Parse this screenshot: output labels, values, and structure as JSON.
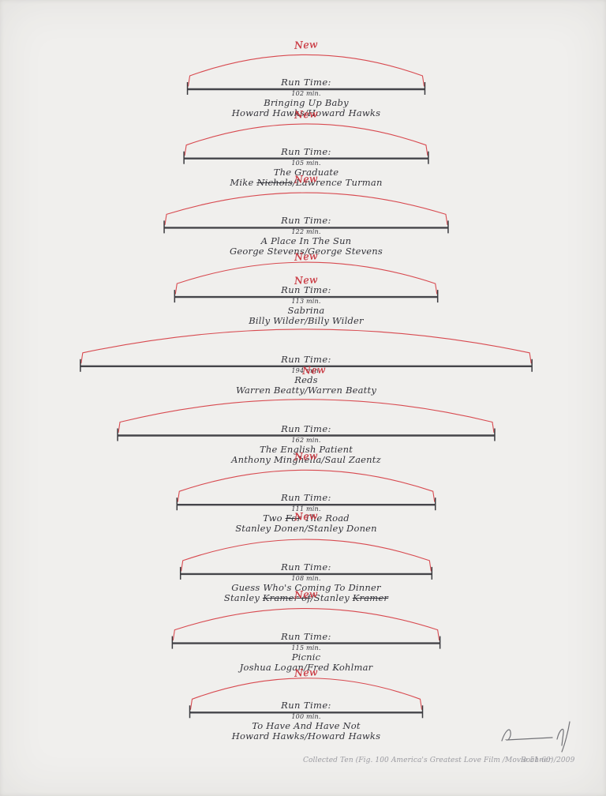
{
  "artwork": {
    "new_label": "New",
    "runtime_label": "Run Time:",
    "caption": "Collected Ten (Fig. 100 America's Greatest Love Film /Movie 51-60)",
    "signature_text": "Bochner /2009",
    "colors": {
      "paper": "#f0efed",
      "ink": "#33333a",
      "line": "#45454a",
      "red_arc": "#d84a50",
      "red_new": "#c9353e",
      "pencil": "#9b9ba1"
    },
    "sections": [
      {
        "runtime_min": 102,
        "minutes_text": "102 min.",
        "title": [
          {
            "text": "Bringing Up Baby"
          }
        ],
        "credits": [
          {
            "text": "Howard Hawks/Howard Hawks"
          }
        ],
        "new_positions": [
          "above-arc"
        ]
      },
      {
        "runtime_min": 105,
        "minutes_text": "105 min.",
        "title": [
          {
            "text": "The Graduate"
          }
        ],
        "credits": [
          {
            "text": "Mike "
          },
          {
            "text": "Nichols",
            "struck": true
          },
          {
            "text": "/Lawrence Turman"
          }
        ],
        "new_positions": [
          "above-arc",
          "on-credits"
        ]
      },
      {
        "runtime_min": 122,
        "minutes_text": "122 min.",
        "title": [
          {
            "text": "A Place In The Sun"
          }
        ],
        "credits": [
          {
            "text": "George Stevens/George Stevens"
          }
        ],
        "new_positions": [
          "below-credits"
        ]
      },
      {
        "runtime_min": 113,
        "minutes_text": "113 min.",
        "title": [
          {
            "text": "Sabrina"
          }
        ],
        "credits": [
          {
            "text": "Billy Wilder/Billy Wilder"
          }
        ],
        "new_positions": [
          "above-runtime"
        ]
      },
      {
        "runtime_min": 194,
        "minutes_text": "194 min.",
        "title": [
          {
            "text": "Reds"
          }
        ],
        "credits": [
          {
            "text": "Warren Beatty/Warren Beatty"
          }
        ],
        "new_positions": [
          "on-minutes"
        ]
      },
      {
        "runtime_min": 162,
        "minutes_text": "162 min.",
        "title": [
          {
            "text": "The English Patient"
          }
        ],
        "credits": [
          {
            "text": "Anthony Minghella/Saul Zaentz"
          }
        ],
        "new_positions": [
          "on-credits"
        ]
      },
      {
        "runtime_min": 111,
        "minutes_text": "111 min.",
        "title": [
          {
            "text": "Two "
          },
          {
            "text": "For",
            "struck": true
          },
          {
            "text": " The Road"
          }
        ],
        "credits": [
          {
            "text": "Stanley Donen/Stanley Donen"
          }
        ],
        "new_positions": [
          "on-title"
        ]
      },
      {
        "runtime_min": 108,
        "minutes_text": "108 min.",
        "title": [
          {
            "text": "Guess Who's Coming To Dinner"
          }
        ],
        "credits": [
          {
            "text": "Stanley "
          },
          {
            "text": "Kramer of",
            "struck": true
          },
          {
            "text": "/Stanley "
          },
          {
            "text": "Kramer",
            "struck": true
          }
        ],
        "new_positions": [
          "on-credits"
        ]
      },
      {
        "runtime_min": 115,
        "minutes_text": "115 min.",
        "title": [
          {
            "text": "Picnic"
          }
        ],
        "credits": [
          {
            "text": "Joshua Logan/Fred Kohlmar"
          }
        ],
        "new_positions": [
          "below-credits"
        ]
      },
      {
        "runtime_min": 100,
        "minutes_text": "100 min.",
        "title": [
          {
            "text": "To Have And Have Not"
          }
        ],
        "credits": [
          {
            "text": "Howard Hawks/Howard Hawks"
          }
        ],
        "new_positions": []
      }
    ]
  }
}
